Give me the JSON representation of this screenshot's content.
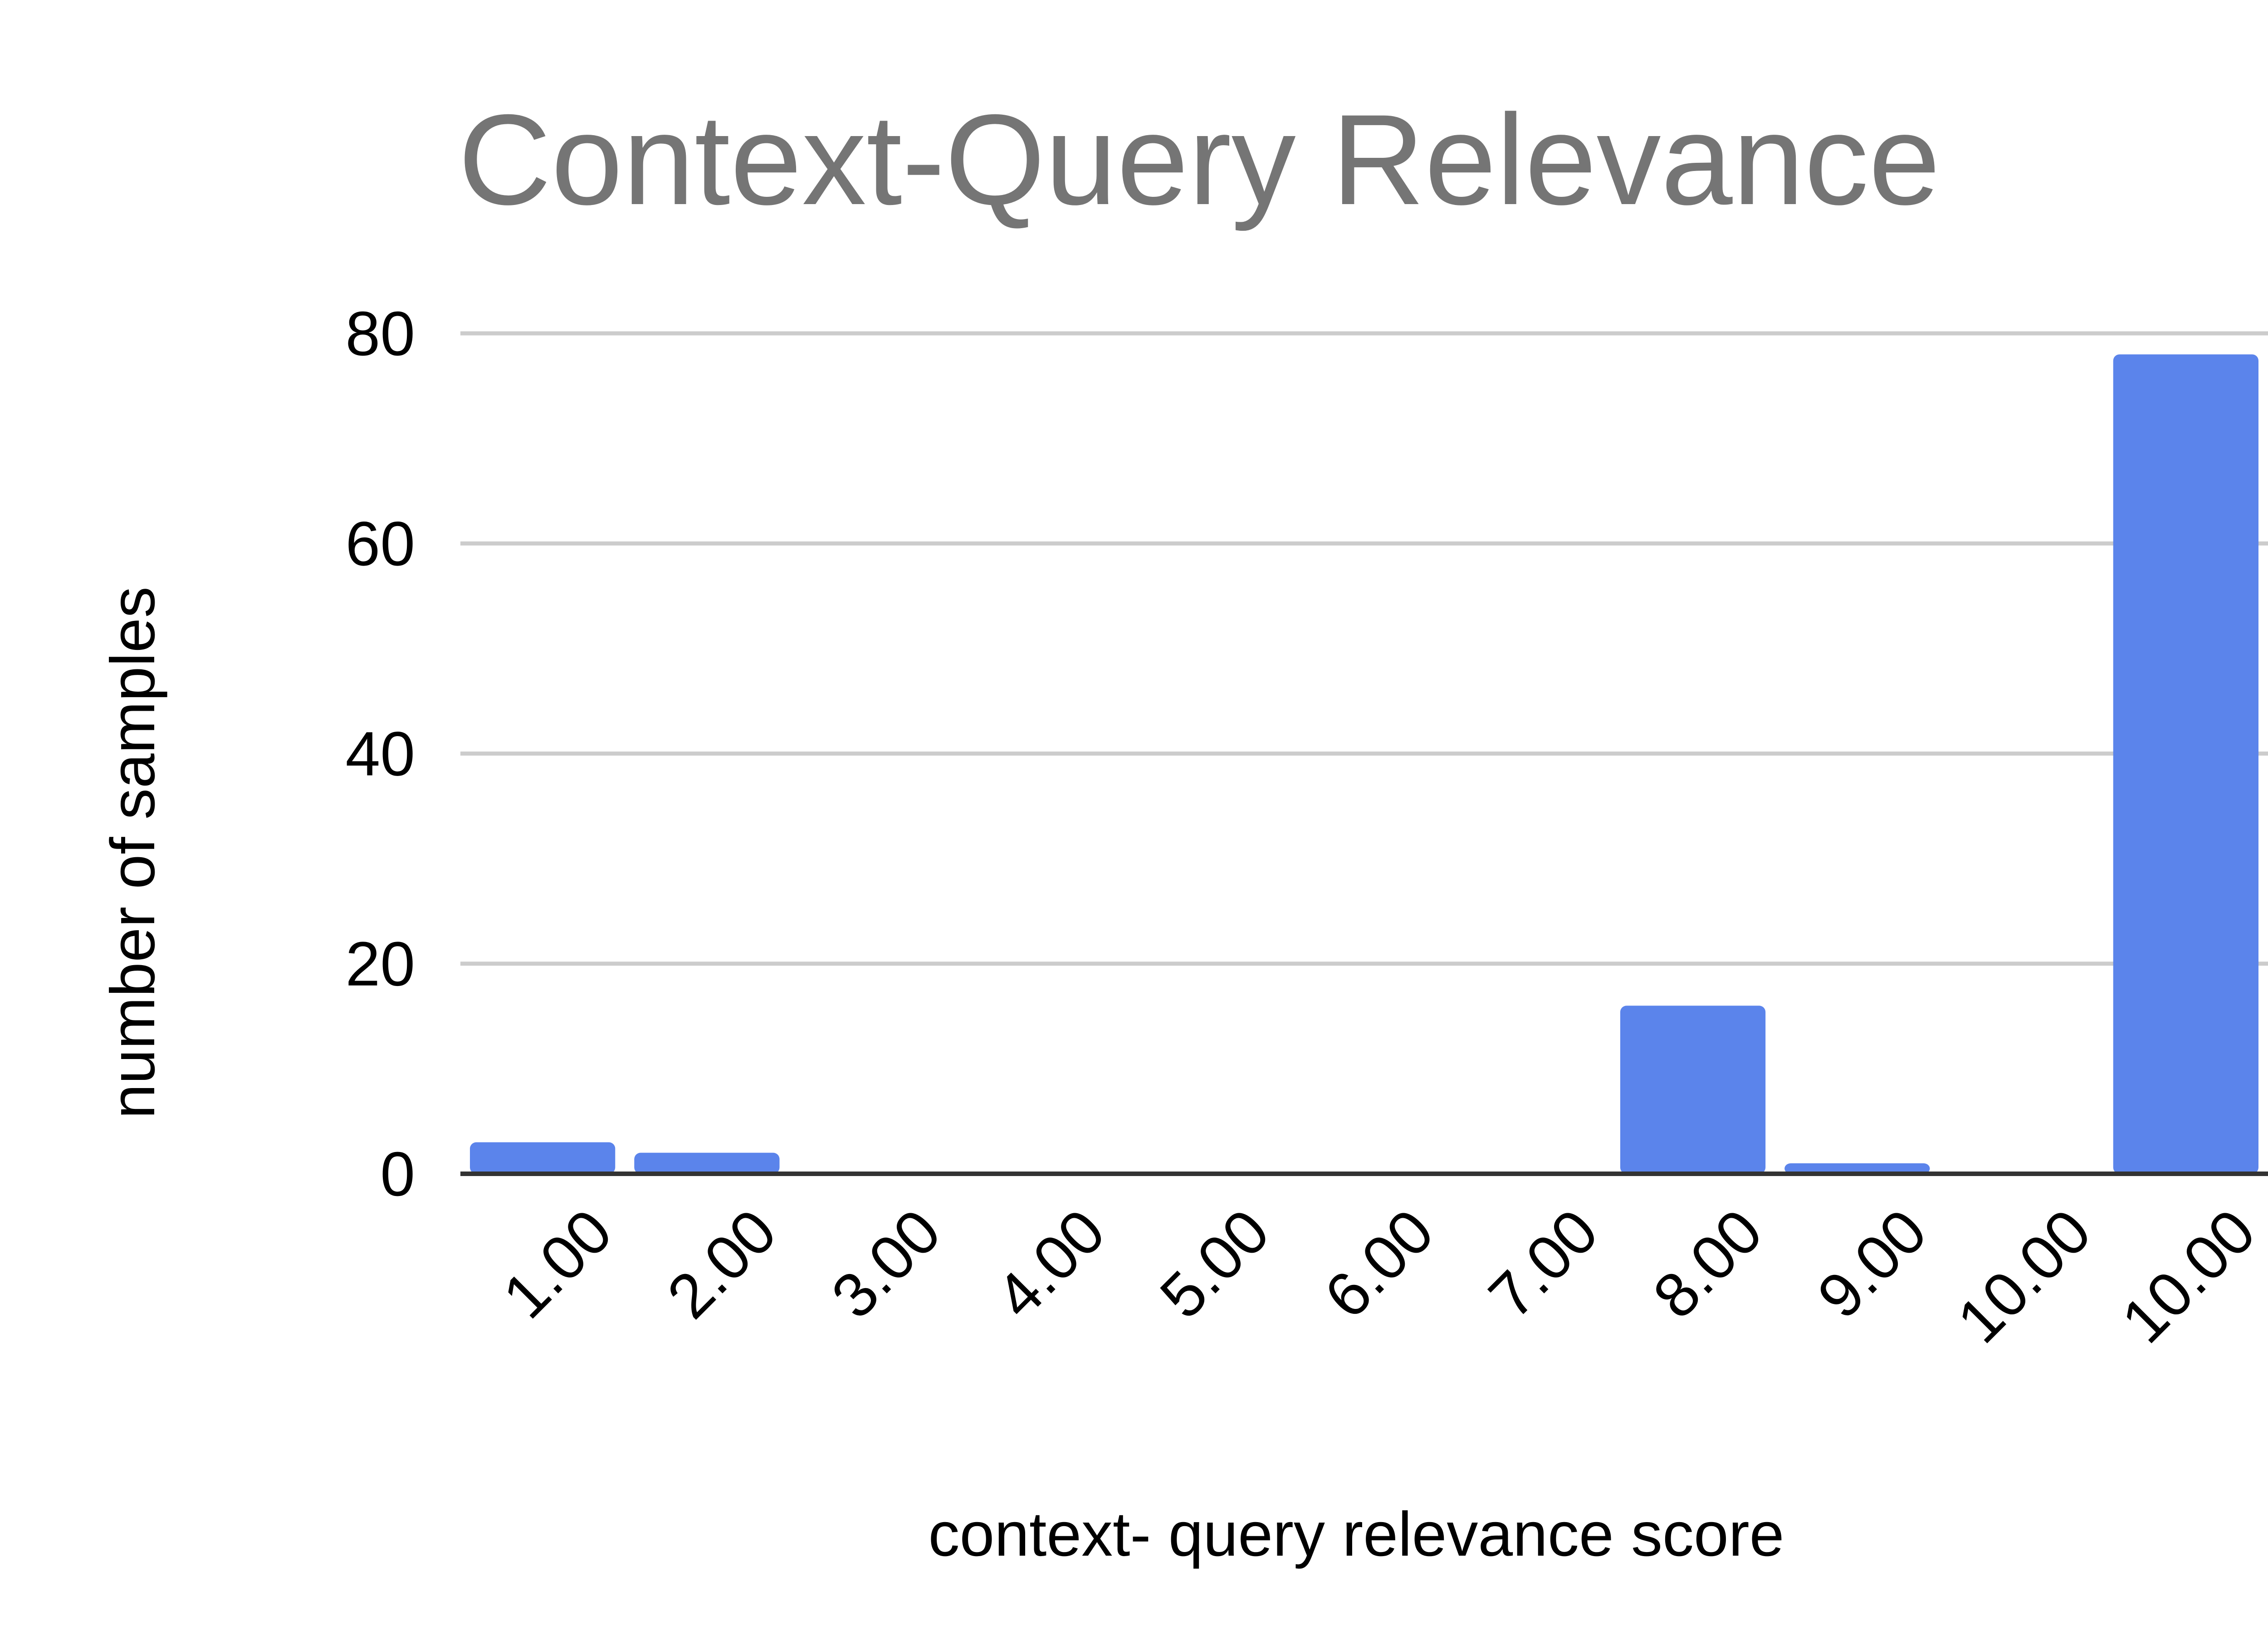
{
  "chart_data": {
    "type": "bar",
    "title": "Context-Query Relevance",
    "xlabel": "context- query relevance score",
    "ylabel": "number of samples",
    "categories": [
      "1.00",
      "2.00",
      "3.00",
      "4.00",
      "5.00",
      "6.00",
      "7.00",
      "8.00",
      "9.00",
      "10.00",
      "10.00"
    ],
    "values": [
      3,
      2,
      0,
      0,
      0,
      0,
      0,
      16,
      1,
      0,
      78
    ],
    "ylim": [
      0,
      80
    ],
    "yticks": [
      "0",
      "20",
      "40",
      "60",
      "80"
    ],
    "grid": true,
    "legend": "none",
    "colors": {
      "bar": "#5b84eb",
      "grid": "#cccccc",
      "baseline": "#333333",
      "title": "#757575",
      "text": "#000000"
    }
  }
}
